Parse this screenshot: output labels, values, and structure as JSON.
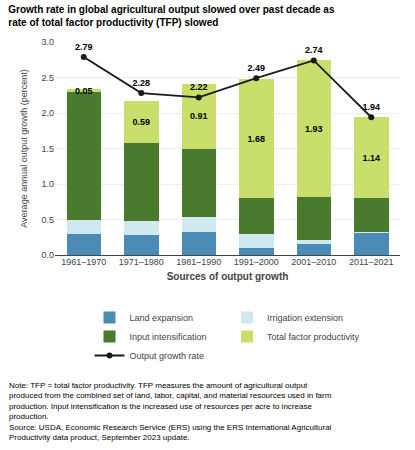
{
  "chart_data": {
    "type": "bar",
    "stacked": true,
    "title": "Growth rate in global agricultural output slowed over past decade as\nrate of total factor productivity (TFP) slowed",
    "xlabel": "Sources of output growth",
    "ylabel": "Average annual output growth (percent)",
    "categories": [
      "1961–1970",
      "1971–1980",
      "1981–1990",
      "1991–2000",
      "2001–2010",
      "2011–2021"
    ],
    "series": [
      {
        "name": "Land expansion",
        "color": "#4a8cb5",
        "values": [
          0.3,
          0.28,
          0.32,
          0.1,
          0.15,
          0.31
        ]
      },
      {
        "name": "Irrigation extension",
        "color": "#d0e8f0",
        "values": [
          0.2,
          0.2,
          0.22,
          0.2,
          0.06,
          0.02
        ]
      },
      {
        "name": "Input intensification",
        "color": "#4a7a2e",
        "values": [
          1.79,
          1.1,
          0.96,
          0.5,
          0.6,
          0.47
        ]
      },
      {
        "name": "Total factor productivity",
        "color": "#c8e06b",
        "values": [
          0.05,
          0.59,
          0.91,
          1.68,
          1.93,
          1.14
        ],
        "data_labels": true
      },
      {
        "name": "Output growth rate",
        "type": "line",
        "color": "#1a1a1a",
        "marker": "circle",
        "values": [
          2.79,
          2.28,
          2.22,
          2.49,
          2.74,
          1.94
        ],
        "data_labels": true
      }
    ],
    "ylim": [
      0.0,
      3.0
    ],
    "yticks": [
      {
        "value": 0,
        "label": "0.0"
      },
      0.5,
      {
        "value": 1,
        "label": "1.0"
      },
      1.5,
      {
        "value": 2,
        "label": "2.0"
      },
      2.5,
      {
        "value": 3,
        "label": "3.0"
      }
    ],
    "grid": true,
    "legend": "bottom",
    "annotations": [
      "Note: TFP = total factor productivity. TFP measures the amount of agricultural output\nproduced from the combined set of land, labor, capital, and material resources used in farm\nproduction. Input intensification is the increased use of resources per acre to increase\nproduction.\nSource: USDA, Economic Research Service (ERS) using the ERS International Agricultural\nProductivity data product, September 2023 update."
    ]
  }
}
